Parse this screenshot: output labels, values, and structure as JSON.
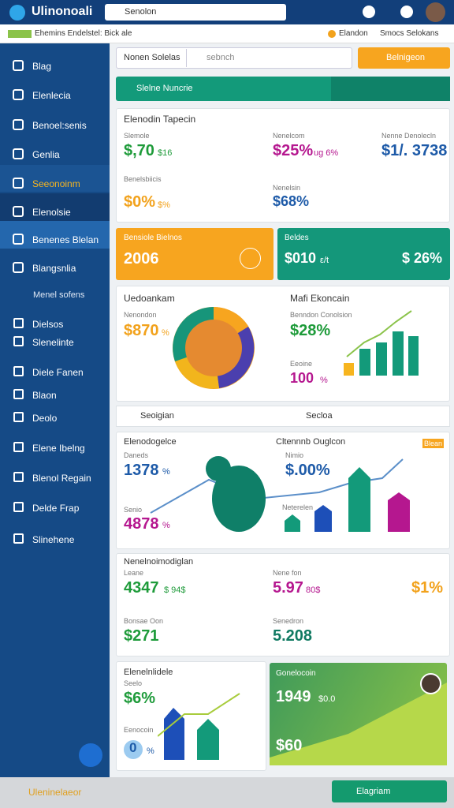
{
  "header": {
    "app_name": "Ulinonoali",
    "search_placeholder": "Senolon"
  },
  "subheader": {
    "breadcrumb": "Ehemins Endelstel: Bick ale",
    "status": "Elandon",
    "link": "Smocs Selokans"
  },
  "sidebar": {
    "items": [
      "Blag",
      "Elenlecia",
      "Benoel:senis",
      "Genlia",
      "Seeonoinm",
      "Elenolsie",
      "Benenes Blelan",
      "Blangsnlia"
    ],
    "section": "Menel sofens",
    "section_items": [
      "Dielsos",
      "Slenelinte",
      "Diele Fanen",
      "Blaon",
      "Deolo",
      "Elene Ibelng",
      "Blenol Regain",
      "Delde Frap",
      "Slinehene"
    ]
  },
  "toolbar": {
    "label": "Nonen Solelas",
    "search_placeholder": "sebnch",
    "button": "Belnigeon"
  },
  "banner": {
    "title": "Slelne Nuncrie"
  },
  "summary_card": {
    "title": "Elenodin Tapecin",
    "metrics": [
      {
        "label": "Slemole",
        "value": "$,70",
        "note": "$16"
      },
      {
        "label": "Nenelcom",
        "value": "$25%",
        "note": "ug 6%"
      },
      {
        "label": "Nenne Denolecln",
        "value": "$1/. 3738"
      },
      {
        "label": "Benelsbiicis",
        "value": "$0%",
        "note": "$%"
      },
      {
        "label": "Nenelsin",
        "value": "$68%"
      }
    ]
  },
  "orange_card": {
    "title": "Bensiole Bielnos",
    "value": "2006"
  },
  "teal_card": {
    "title": "Beldes",
    "value": "$010",
    "note": "ε/t",
    "value2": "$ 26%"
  },
  "chart_card": {
    "title": "Uedoankam",
    "label": "Nenondon",
    "value": "$870",
    "note": "%",
    "right_title": "Mafi Ekoncain",
    "right_label": "Benndon Conolsion",
    "right_value": "$28%",
    "right_label2": "Eeoine",
    "right_value2": "100",
    "right_note2": "%"
  },
  "tabs": {
    "left": "Seoigian",
    "right": "Secloa"
  },
  "trend_card": {
    "title": "Elenodogelce",
    "label1": "Daneds",
    "value1": "1378",
    "note1": "%",
    "label2": "Senio",
    "value2": "4878",
    "note2": "%",
    "mid_title": "Cltennnb Ouglcon",
    "mid_label": "Nimio",
    "mid_value": "$.00%",
    "mid_label2": "Neterelen",
    "badge": "Blean"
  },
  "metrics_card": {
    "title": "Nenelnoimodiglan",
    "metrics": [
      {
        "label": "Leane",
        "value": "4347",
        "note": "$ 94$"
      },
      {
        "label": "Nene fon",
        "value": "5.97",
        "note": "80$"
      },
      {
        "value": "$1%"
      },
      {
        "label": "Bonsae Oon",
        "value": "$271"
      },
      {
        "label": "Senedron",
        "value": "5.208"
      }
    ]
  },
  "small_card": {
    "title": "Elenelnlidele",
    "label": "Seelo",
    "value": "$6%",
    "label2": "Eenocoin",
    "value2": "0",
    "note2": "%"
  },
  "green_card": {
    "title": "Gonelocoin",
    "value": "1949",
    "note": "$0.0",
    "value2": "$60"
  },
  "footer": {
    "left": "Uleninelaeor",
    "button": "Elagriam"
  }
}
